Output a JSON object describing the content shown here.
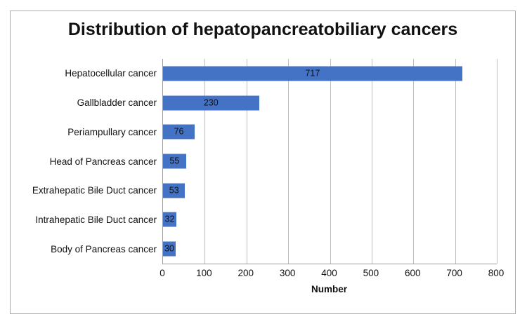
{
  "chart_data": {
    "type": "bar",
    "orientation": "horizontal",
    "title": "Distribution of hepatopancreatobiliary cancers",
    "xlabel": "Number",
    "categories": [
      "Hepatocellular cancer",
      "Gallbladder cancer",
      "Periampullary cancer",
      "Head of Pancreas cancer",
      "Extrahepatic Bile Duct cancer",
      "Intrahepatic Bile Duct cancer",
      "Body of Pancreas cancer"
    ],
    "values": [
      717,
      230,
      76,
      55,
      53,
      32,
      30
    ],
    "xlim": [
      0,
      800
    ],
    "xticks": [
      0,
      100,
      200,
      300,
      400,
      500,
      600,
      700,
      800
    ],
    "grid": true,
    "legend": "none",
    "data_label_position": "center",
    "colors": {
      "bar_fill": "#4472C4",
      "gridline": "#bfbfbf",
      "axis_line": "#9a9a9a",
      "frame_border": "#ababab",
      "text": "#111111"
    }
  }
}
